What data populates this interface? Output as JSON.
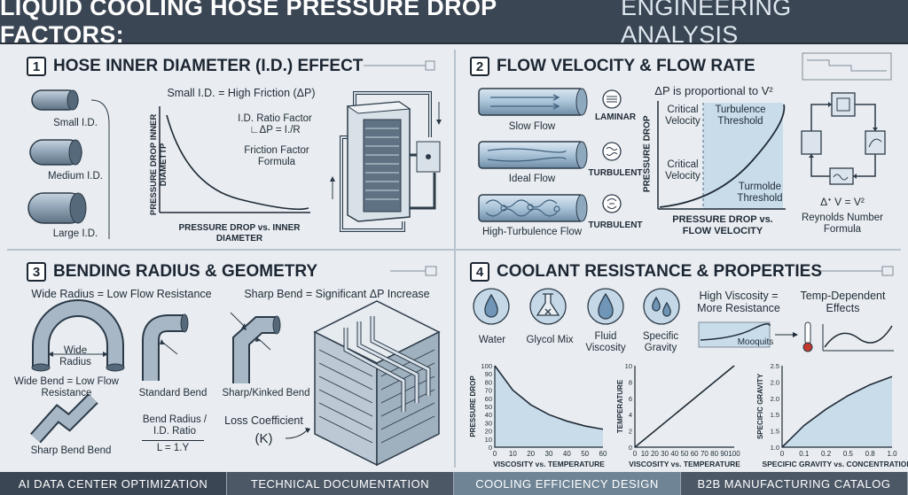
{
  "header": {
    "title_bold": "LIQUID COOLING HOSE PRESSURE DROP FACTORS:",
    "title_rest": "ENGINEERING ANALYSIS"
  },
  "panel1": {
    "number": "1",
    "title": "HOSE INNER DIAMETER (I.D.) EFFECT",
    "hoses": [
      "Small I.D.",
      "Medium I.D.",
      "Large I.D."
    ],
    "chart_title": "Small I.D. = High Friction (ΔP)",
    "ylabel": "PRESSURE DROP INNER DIAMETTP",
    "xlabel": "PRESSURE DROP vs. INNER DIAMETER",
    "note1": "I.D. Ratio Factor ∟ΔP = I./R",
    "note2": "Friction Factor Formula"
  },
  "panel2": {
    "number": "2",
    "title": "FLOW VELOCITY & FLOW RATE",
    "pipes": [
      "Slow Flow",
      "Ideal Flow",
      "High-Turbulence Flow"
    ],
    "flow_types": [
      "LAMINAR",
      "TURBULENT",
      "TURBULENT"
    ],
    "chart_title": "ΔP is proportional to V²",
    "crit1": "Critical Velocity",
    "crit2": "Critical Velocity",
    "turb1": "Turbulence Threshold",
    "turb2": "Turmolde Threshold",
    "ylabel": "PRESSURE DROP",
    "xlabel": "PRESSURE DROP vs. FLOW VELOCITY",
    "formula": "Δᐩ V = V²",
    "formula_label": "Reynolds Number Formula"
  },
  "panel3": {
    "number": "3",
    "title": "BENDING RADIUS & GEOMETRY",
    "sub_left": "Wide Radius = Low Flow Resistance",
    "sub_right": "Sharp Bend = Significant ΔP Increase",
    "wide_radius": "Wide Radius",
    "wide_bend": "Wide Bend = Low Flow Resistance",
    "standard": "Standard Bend",
    "sharp": "Sharp/Kinked Bend",
    "sharp_bend": "Sharp Bend Bend",
    "ratio": "Bend Radius / I.D. Ratio",
    "ratio_formula": "L = 1.Y",
    "loss": "Loss Coefficient",
    "loss_k": "(K)"
  },
  "panel4": {
    "number": "4",
    "title": "COOLANT RESISTANCE & PROPERTIES",
    "props": [
      "Water",
      "Glycol Mix",
      "Fluid Viscosity",
      "Specific Gravity"
    ],
    "visc": "High Viscosity = More Resistance",
    "temp": "Temp-Dependent Effects",
    "mini_label": "Mooquits"
  },
  "chart_data": [
    {
      "type": "line",
      "x": [
        0,
        10,
        20,
        30,
        40,
        50,
        60
      ],
      "values": [
        100,
        70,
        52,
        40,
        32,
        26,
        22
      ],
      "xlabel": "VISCOSITY vs. TEMPERATURE",
      "ylabel": "PRESSURE DROP",
      "xticks": [
        "0",
        "10",
        "20",
        "30",
        "40",
        "50",
        "60"
      ],
      "yticks": [
        "0",
        "10",
        "20",
        "30",
        "40",
        "50",
        "60",
        "70",
        "80",
        "90",
        "100"
      ],
      "xlim": [
        0,
        60
      ],
      "ylim": [
        0,
        100
      ]
    },
    {
      "type": "line",
      "x": [
        0,
        100
      ],
      "values": [
        0,
        10
      ],
      "xlabel": "VISCOSITY vs. TEMPERATURE",
      "ylabel": "TEMPERATURE",
      "xticks": [
        "0",
        "10",
        "20",
        "30",
        "40",
        "50",
        "60",
        "70",
        "80",
        "90",
        "100"
      ],
      "yticks": [
        "0",
        "2",
        "4",
        "6",
        "8",
        "10"
      ],
      "xlim": [
        0,
        100
      ],
      "ylim": [
        0,
        10
      ]
    },
    {
      "type": "area",
      "x": [
        0,
        0.2,
        0.4,
        0.6,
        0.8,
        1.0
      ],
      "values": [
        1.0,
        1.4,
        1.7,
        1.95,
        2.15,
        2.3
      ],
      "xlabel": "SPECIFIC GRAVITY vs. CONCENTRATION",
      "ylabel": "SPECIFIC GRAVITY",
      "xticks": [
        "0",
        "0.1",
        "0.2",
        "0.5",
        "0.8",
        "1.0"
      ],
      "yticks": [
        "1.0",
        "1.5",
        "1.5",
        "2.0",
        "2.0",
        "2.5"
      ],
      "xlim": [
        0,
        1
      ],
      "ylim": [
        1,
        2.5
      ]
    }
  ],
  "footer": [
    "AI DATA CENTER OPTIMIZATION",
    "TECHNICAL DOCUMENTATION",
    "COOLING EFFICIENCY DESIGN",
    "B2B MANUFACTURING CATALOG"
  ],
  "colors": {
    "header": "#3b4654",
    "pipe": "#8ea4b8",
    "accent": "#4a6a86",
    "area": "#c9dcea"
  }
}
